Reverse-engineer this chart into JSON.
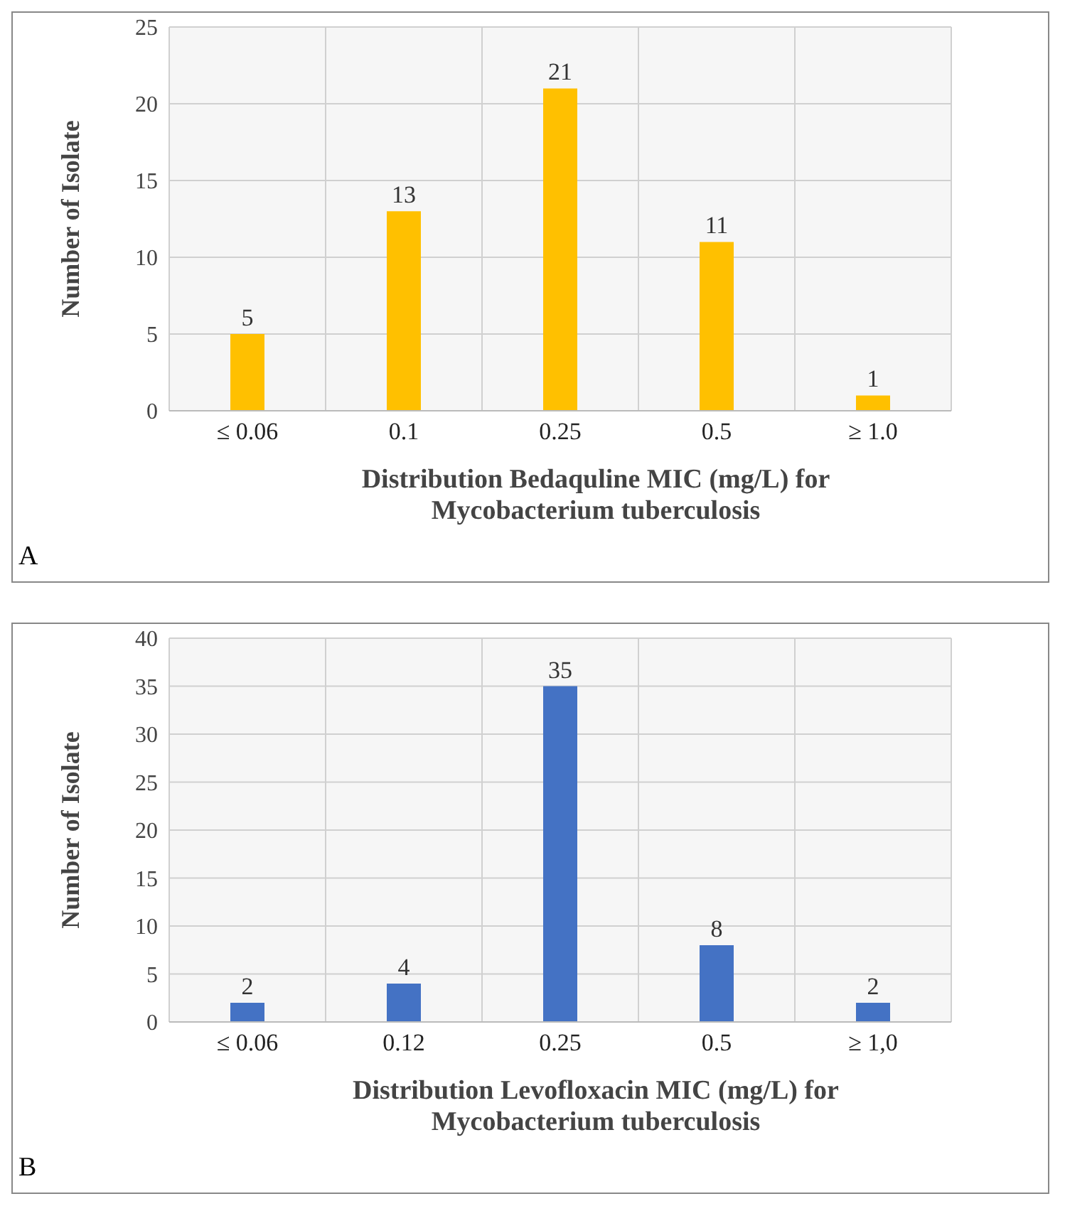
{
  "chart_data": [
    {
      "type": "bar",
      "categories": [
        "≤ 0.06",
        "0.1",
        "0.25",
        "0.5",
        "≥ 1.0"
      ],
      "values": [
        5,
        13,
        21,
        11,
        1
      ],
      "color": "#ffc000",
      "ylim": [
        0,
        25
      ],
      "yticks": [
        0,
        5,
        10,
        15,
        20,
        25
      ],
      "ylabel": "Number of Isolate",
      "xlabel": "Distribution Bedaquline MIC (mg/L) for Mycobacterium tuberculosis",
      "data_labels": true,
      "grid": true,
      "annotations": [
        "A"
      ]
    },
    {
      "type": "bar",
      "categories": [
        "≤ 0.06",
        "0.12",
        "0.25",
        "0.5",
        "≥ 1,0"
      ],
      "values": [
        2,
        4,
        35,
        8,
        2
      ],
      "color": "#4472c4",
      "ylim": [
        0,
        40
      ],
      "yticks": [
        0,
        5,
        10,
        15,
        20,
        25,
        30,
        35,
        40
      ],
      "ylabel": "Number of Isolate",
      "xlabel": "Distribution Levofloxacin MIC (mg/L) for Mycobacterium tuberculosis",
      "data_labels": true,
      "grid": true,
      "annotations": [
        "B"
      ]
    }
  ]
}
